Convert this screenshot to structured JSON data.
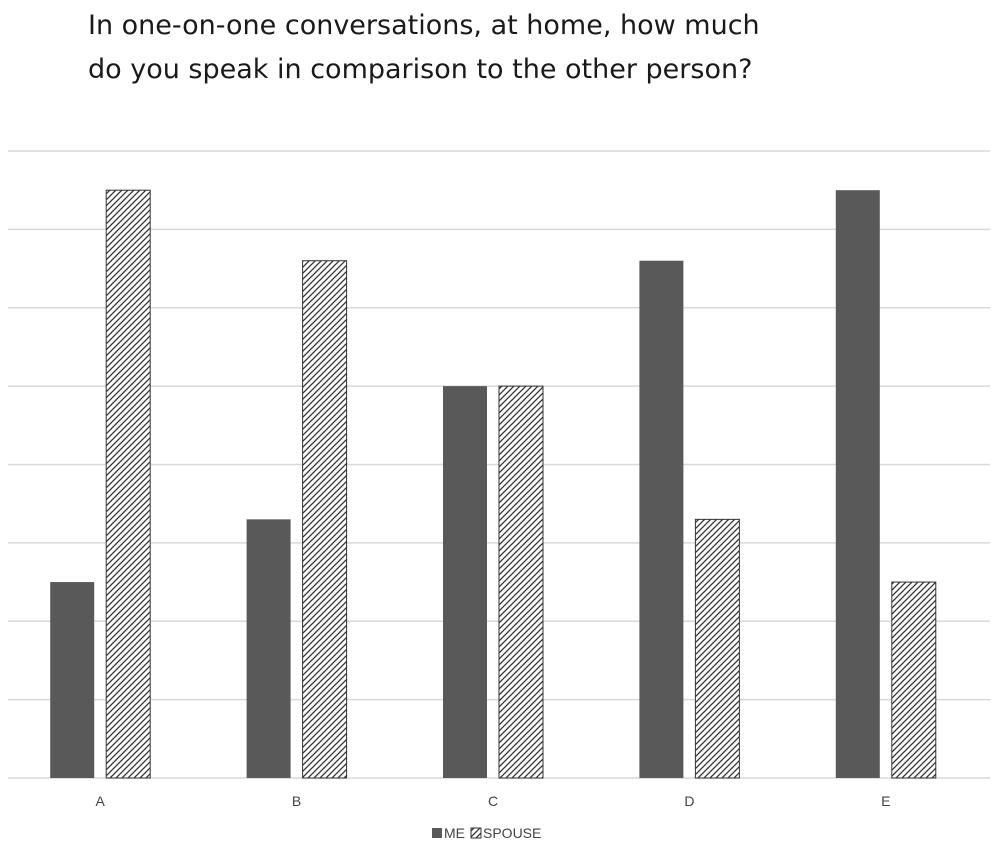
{
  "chart_data": {
    "type": "bar",
    "title_lines": [
      "In one-on-one conversations, at home, how much",
      "do you speak in comparison to the other person?"
    ],
    "categories": [
      "A",
      "B",
      "C",
      "D",
      "E"
    ],
    "series": [
      {
        "name": "ME",
        "values": [
          2.5,
          3.3,
          5.0,
          6.6,
          7.5
        ],
        "color": "#595959",
        "pattern": "solid"
      },
      {
        "name": "SPOUSE",
        "values": [
          7.5,
          6.6,
          5.0,
          3.3,
          2.5
        ],
        "color": "#ffffff",
        "pattern": "diagonal-hatch"
      }
    ],
    "ylim": [
      0,
      8
    ],
    "grid": true,
    "y_tick_labels_visible": false,
    "legend_position": "bottom-center",
    "colors": {
      "me": "#595959",
      "spouse_hatch": "#333333",
      "gridline": "#d9d9d9",
      "text": "#444444"
    }
  }
}
